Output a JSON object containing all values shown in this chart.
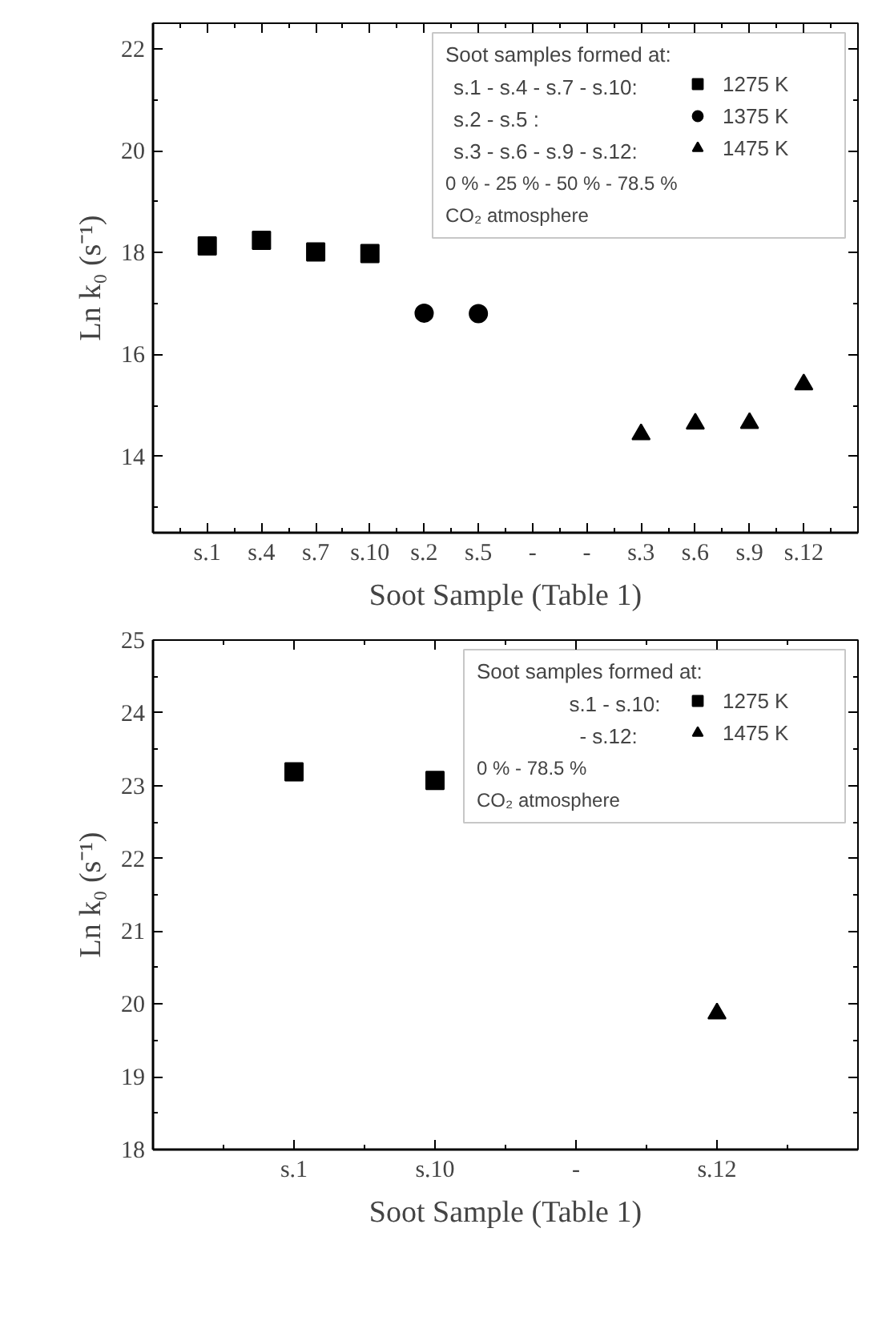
{
  "chart_data": [
    {
      "type": "scatter",
      "xlabel": "Soot Sample (Table 1)",
      "ylabel": "Ln k₀ (s⁻¹)",
      "legend_title": "Soot samples formed at:",
      "categories": [
        "s.1",
        "s.4",
        "s.7",
        "s.10",
        "s.2",
        "s.5",
        "-",
        "-",
        "s.3",
        "s.6",
        "s.9",
        "s.12"
      ],
      "ylim": [
        12.5,
        22.5
      ],
      "yticks": [
        14,
        16,
        18,
        20,
        22
      ],
      "grid": false,
      "legend": "top right",
      "series": [
        {
          "name": "1275 K",
          "color": "#000000",
          "marker": "square",
          "values": [
            18.13,
            18.24,
            18.01,
            17.98,
            null,
            null,
            null,
            null,
            null,
            null,
            null,
            null
          ]
        },
        {
          "name": "1375 K",
          "color": "#000000",
          "marker": "circle",
          "values": [
            null,
            null,
            null,
            null,
            16.81,
            16.8,
            null,
            null,
            null,
            null,
            null,
            null
          ]
        },
        {
          "name": "1475 K",
          "color": "#000000",
          "marker": "triangle",
          "values": [
            null,
            null,
            null,
            null,
            null,
            null,
            null,
            null,
            14.43,
            14.64,
            14.65,
            15.41
          ]
        }
      ],
      "annotations": [
        "s.1  -  s.4  -  s.7  -  s.10:",
        "s.2  -  s.5                      :",
        "s.3  -  s.6  -  s.9  -  s.12:",
        "0 % - 25 % - 50 %  - 78.5 %",
        "CO₂ atmosphere"
      ]
    },
    {
      "type": "scatter",
      "xlabel": "Soot Sample (Table 1)",
      "ylabel": "Ln k₀ (s⁻¹)",
      "legend_title": "Soot samples formed at:",
      "categories": [
        "s.1",
        "s.10",
        "-",
        "s.12"
      ],
      "ylim": [
        18,
        25
      ],
      "yticks": [
        18,
        19,
        20,
        21,
        22,
        23,
        24,
        25
      ],
      "grid": false,
      "legend": "top right",
      "series": [
        {
          "name": "1275 K",
          "color": "#000000",
          "marker": "square",
          "values": [
            23.19,
            23.07,
            null,
            null
          ]
        },
        {
          "name": "1475 K",
          "color": "#000000",
          "marker": "triangle",
          "values": [
            null,
            null,
            null,
            19.87
          ]
        }
      ],
      "annotations": [
        "s.1  -  s.10:",
        "-       s.12:",
        "0 % - 78.5 %",
        "CO₂ atmosphere"
      ]
    }
  ]
}
